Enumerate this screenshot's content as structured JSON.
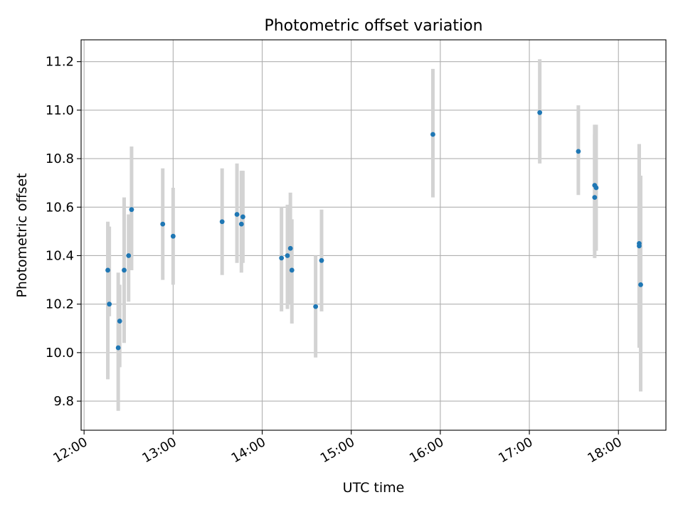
{
  "chart_data": {
    "type": "scatter",
    "title": "Photometric offset variation",
    "xlabel": "UTC time",
    "ylabel": "Photometric offset",
    "xlim": [
      "11:58",
      "18:32"
    ],
    "ylim": [
      9.68,
      11.29
    ],
    "x_ticks": [
      "12:00",
      "13:00",
      "14:00",
      "15:00",
      "16:00",
      "17:00",
      "18:00"
    ],
    "y_ticks": [
      "9.8",
      "10.0",
      "10.2",
      "10.4",
      "10.6",
      "10.8",
      "11.0",
      "11.2"
    ],
    "grid": true,
    "colors": {
      "point": "#1f77b4",
      "errorbar": "#d3d3d3",
      "grid": "#b0b0b0"
    },
    "series": [
      {
        "points": [
          {
            "time": "12:16",
            "y": 10.34,
            "lo": 9.89,
            "hi": 10.54
          },
          {
            "time": "12:17",
            "y": 10.2,
            "lo": 10.15,
            "hi": 10.52
          },
          {
            "time": "12:23",
            "y": 10.02,
            "lo": 9.76,
            "hi": 10.33
          },
          {
            "time": "12:24",
            "y": 10.13,
            "lo": 9.94,
            "hi": 10.28
          },
          {
            "time": "12:27",
            "y": 10.34,
            "lo": 10.04,
            "hi": 10.64
          },
          {
            "time": "12:30",
            "y": 10.4,
            "lo": 10.21,
            "hi": 10.57
          },
          {
            "time": "12:32",
            "y": 10.59,
            "lo": 10.34,
            "hi": 10.85
          },
          {
            "time": "12:53",
            "y": 10.53,
            "lo": 10.3,
            "hi": 10.76
          },
          {
            "time": "13:00",
            "y": 10.48,
            "lo": 10.28,
            "hi": 10.68
          },
          {
            "time": "13:33",
            "y": 10.54,
            "lo": 10.32,
            "hi": 10.76
          },
          {
            "time": "13:43",
            "y": 10.57,
            "lo": 10.37,
            "hi": 10.78
          },
          {
            "time": "13:46",
            "y": 10.53,
            "lo": 10.33,
            "hi": 10.75
          },
          {
            "time": "13:47",
            "y": 10.56,
            "lo": 10.37,
            "hi": 10.75
          },
          {
            "time": "14:13",
            "y": 10.39,
            "lo": 10.17,
            "hi": 10.6
          },
          {
            "time": "14:17",
            "y": 10.4,
            "lo": 10.18,
            "hi": 10.61
          },
          {
            "time": "14:19",
            "y": 10.43,
            "lo": 10.2,
            "hi": 10.66
          },
          {
            "time": "14:20",
            "y": 10.34,
            "lo": 10.12,
            "hi": 10.55
          },
          {
            "time": "14:36",
            "y": 10.19,
            "lo": 9.98,
            "hi": 10.4
          },
          {
            "time": "14:40",
            "y": 10.38,
            "lo": 10.17,
            "hi": 10.59
          },
          {
            "time": "15:55",
            "y": 10.9,
            "lo": 10.64,
            "hi": 11.17
          },
          {
            "time": "17:07",
            "y": 10.99,
            "lo": 10.78,
            "hi": 11.21
          },
          {
            "time": "17:33",
            "y": 10.83,
            "lo": 10.65,
            "hi": 11.02
          },
          {
            "time": "17:44",
            "y": 10.64,
            "lo": 10.39,
            "hi": 10.9
          },
          {
            "time": "17:44",
            "y": 10.69,
            "lo": 10.42,
            "hi": 10.94
          },
          {
            "time": "17:45",
            "y": 10.68,
            "lo": 10.42,
            "hi": 10.94
          },
          {
            "time": "18:14",
            "y": 10.44,
            "lo": 10.03,
            "hi": 10.86
          },
          {
            "time": "18:14",
            "y": 10.45,
            "lo": 10.02,
            "hi": 10.86
          },
          {
            "time": "18:15",
            "y": 10.28,
            "lo": 9.84,
            "hi": 10.73
          }
        ]
      }
    ]
  }
}
